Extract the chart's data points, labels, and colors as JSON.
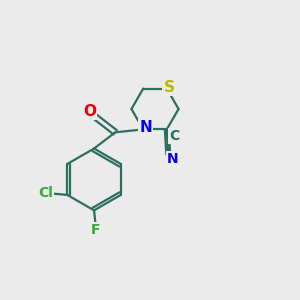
{
  "bg_color": "#ebebeb",
  "bond_color": "#2d6e5e",
  "atom_colors": {
    "S": "#b8b800",
    "N": "#0000ee",
    "O": "#ee0000",
    "Cl": "#33aa33",
    "F": "#33aa33",
    "C": "#2d6e5e"
  },
  "line_width": 1.6,
  "font_size": 11,
  "figsize": [
    3.0,
    3.0
  ],
  "dpi": 100
}
